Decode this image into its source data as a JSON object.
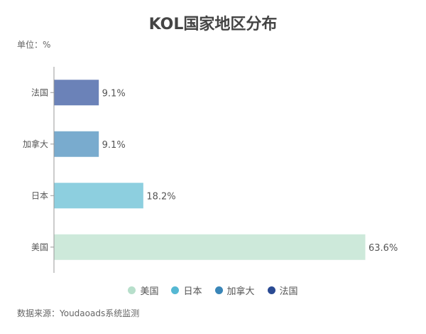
{
  "chart_data": {
    "type": "bar",
    "orientation": "horizontal",
    "title": "KOL国家地区分布",
    "unit_label": "单位：%",
    "categories": [
      "法国",
      "加拿大",
      "日本",
      "美国"
    ],
    "values": [
      9.1,
      9.1,
      18.2,
      63.6
    ],
    "value_labels": [
      "9.1%",
      "9.1%",
      "18.2%",
      "63.6%"
    ],
    "colors": [
      "#6B82B8",
      "#79ABCE",
      "#8DCFDF",
      "#CDE9DA"
    ],
    "xlim": [
      0,
      63.6
    ],
    "grid": false,
    "legend_position": "bottom",
    "legend": [
      {
        "label": "美国",
        "color": "#B7DFCB"
      },
      {
        "label": "日本",
        "color": "#55B8D3"
      },
      {
        "label": "加拿大",
        "color": "#3A86B8"
      },
      {
        "label": "法国",
        "color": "#2A4A93"
      }
    ]
  },
  "source": "数据来源：Youdaoads系统监测"
}
